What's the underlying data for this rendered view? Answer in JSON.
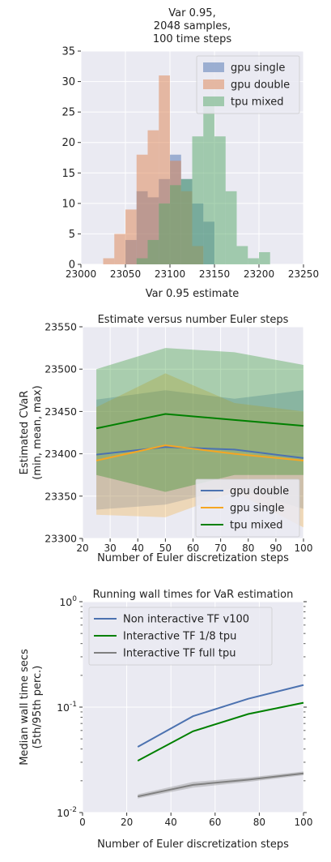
{
  "chart_data": [
    {
      "type": "bar",
      "title_lines": [
        "Var 0.95,",
        "2048 samples,",
        "100 time steps"
      ],
      "xlabel": "Var 0.95 estimate",
      "ylabel": "",
      "xlim": [
        23000,
        23250
      ],
      "ylim": [
        0,
        35
      ],
      "xticks": [
        23000,
        23050,
        23100,
        23150,
        23200,
        23250
      ],
      "yticks": [
        0,
        5,
        10,
        15,
        20,
        25,
        30,
        35
      ],
      "grid": true,
      "legend_position": "top-right",
      "bin_width": 12.5,
      "series": [
        {
          "name": "gpu single",
          "color": "#4c72b0",
          "bin_starts": [
            23050,
            23062.5,
            23075,
            23087.5,
            23100,
            23112.5,
            23125,
            23137.5
          ],
          "values": [
            4,
            12,
            11,
            14,
            18,
            14,
            10,
            7
          ]
        },
        {
          "name": "gpu double",
          "color": "#dd8452",
          "bin_starts": [
            23025,
            23037.5,
            23050,
            23062.5,
            23075,
            23087.5,
            23100,
            23112.5,
            23125
          ],
          "values": [
            1,
            5,
            9,
            18,
            22,
            31,
            17,
            12,
            3
          ]
        },
        {
          "name": "tpu mixed",
          "color": "#55a868",
          "bin_starts": [
            23062.5,
            23075,
            23087.5,
            23100,
            23112.5,
            23125,
            23137.5,
            23150,
            23162.5,
            23175,
            23187.5,
            23200
          ],
          "values": [
            1,
            4,
            10,
            13,
            14,
            21,
            26,
            21,
            12,
            3,
            1,
            2
          ]
        }
      ]
    },
    {
      "type": "line",
      "title": "Estimate versus number Euler steps",
      "xlabel": "Number of Euler discretization steps",
      "ylabel_lines": [
        "Estimated CVaR",
        "(min, mean, max)"
      ],
      "xlim": [
        20,
        100
      ],
      "ylim": [
        23300,
        23550
      ],
      "xticks": [
        20,
        30,
        40,
        50,
        60,
        70,
        80,
        90,
        100
      ],
      "yticks": [
        23300,
        23350,
        23400,
        23450,
        23500,
        23550
      ],
      "grid": true,
      "legend_position": "bottom-right",
      "x": [
        25,
        50,
        75,
        100
      ],
      "series": [
        {
          "name": "gpu double",
          "color": "#4c72b0",
          "mean": [
            23399,
            23408,
            23405,
            23395
          ],
          "min": [
            23334,
            23340,
            23360,
            23335
          ],
          "max": [
            23464,
            23475,
            23465,
            23475
          ]
        },
        {
          "name": "gpu single",
          "color": "#f5a623",
          "mean": [
            23392,
            23410,
            23400,
            23392
          ],
          "min": [
            23328,
            23325,
            23355,
            23313
          ],
          "max": [
            23455,
            23495,
            23460,
            23450
          ]
        },
        {
          "name": "tpu mixed",
          "color": "#008000",
          "mean": [
            23430,
            23447,
            23440,
            23433
          ],
          "min": [
            23375,
            23355,
            23375,
            23375
          ],
          "max": [
            23500,
            23525,
            23520,
            23505
          ]
        }
      ]
    },
    {
      "type": "line",
      "title": "Running wall times for VaR estimation",
      "xlabel": "Number of Euler discretization steps",
      "ylabel_lines": [
        "Median wall time secs",
        "(5th/95th perc.)"
      ],
      "yscale": "log",
      "xlim": [
        0,
        100
      ],
      "ylim": [
        0.01,
        1
      ],
      "xticks": [
        0,
        20,
        40,
        60,
        80,
        100
      ],
      "yticks": [
        0.01,
        0.1,
        1
      ],
      "ytick_labels": [
        {
          "base": "10",
          "exp": "-2"
        },
        {
          "base": "10",
          "exp": "-1"
        },
        {
          "base": "10",
          "exp": "0"
        }
      ],
      "grid": true,
      "legend_position": "top-left",
      "x": [
        25,
        50,
        75,
        100
      ],
      "series": [
        {
          "name": "Non interactive TF v100",
          "color": "#4c72b0",
          "values": [
            0.042,
            0.082,
            0.12,
            0.162
          ],
          "low": [
            0.0415,
            0.0815,
            0.119,
            0.161
          ],
          "high": [
            0.0425,
            0.0825,
            0.121,
            0.163
          ]
        },
        {
          "name": "Interactive TF 1/8 tpu",
          "color": "#008000",
          "values": [
            0.031,
            0.059,
            0.086,
            0.11
          ],
          "low": [
            0.0305,
            0.0585,
            0.0855,
            0.1095
          ],
          "high": [
            0.0315,
            0.0595,
            0.0865,
            0.1105
          ]
        },
        {
          "name": "Interactive TF full tpu",
          "color": "#808080",
          "values": [
            0.0142,
            0.0183,
            0.0205,
            0.0235
          ],
          "low": [
            0.0136,
            0.0172,
            0.0195,
            0.0226
          ],
          "high": [
            0.0149,
            0.0195,
            0.0215,
            0.0245
          ]
        }
      ]
    }
  ]
}
